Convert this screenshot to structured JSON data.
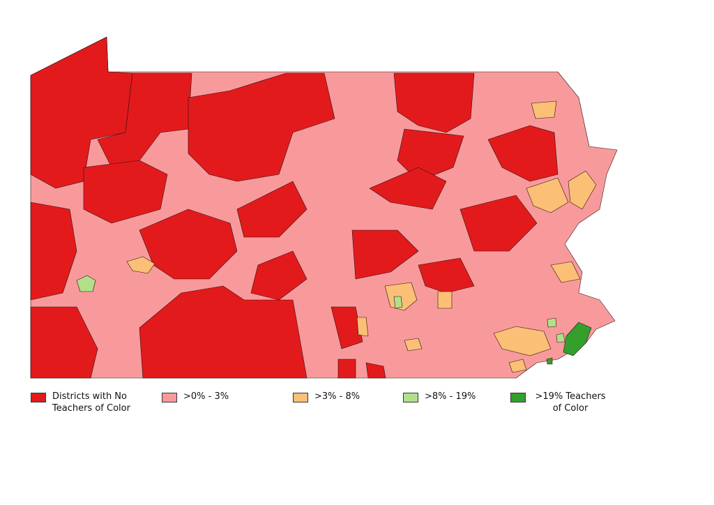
{
  "legend": [
    {
      "label": "Districts with No Teachers of Color",
      "color": "#e31a1c"
    },
    {
      "label": ">0% - 3%",
      "color": "#f89a9c"
    },
    {
      "label": ">3% - 8%",
      "color": "#fbbf76"
    },
    {
      "label": ">8% - 19%",
      "color": "#b2df8a"
    },
    {
      "label": ">19% Teachers of Color",
      "color": "#33a02c"
    }
  ]
}
